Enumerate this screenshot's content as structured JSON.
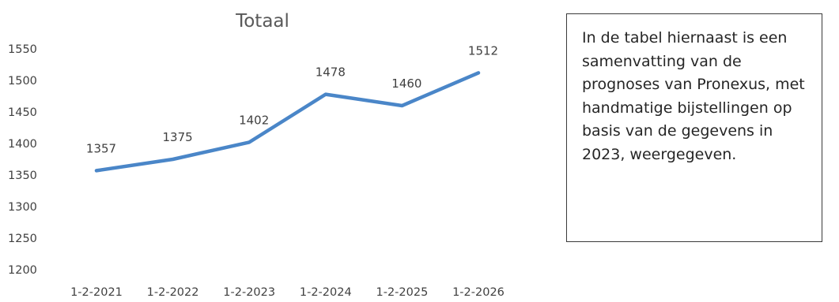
{
  "chart_data": {
    "type": "line",
    "title": "Totaal",
    "categories": [
      "1-2-2021",
      "1-2-2022",
      "1-2-2023",
      "1-2-2024",
      "1-2-2025",
      "1-2-2026"
    ],
    "values": [
      1357,
      1375,
      1402,
      1478,
      1460,
      1512
    ],
    "data_labels": [
      "1357",
      "1375",
      "1402",
      "1478",
      "1460",
      "1512"
    ],
    "y_ticks": [
      "1200",
      "1250",
      "1300",
      "1350",
      "1400",
      "1450",
      "1500",
      "1550"
    ],
    "ylim": [
      1200,
      1550
    ],
    "xlabel": "",
    "ylabel": "",
    "grid": false,
    "legend": false,
    "line_color": "#4a86c8"
  },
  "note": {
    "text": "In de tabel hiernaast is een samenvatting van de prognoses van Pronexus, met handmatige bijstellingen op basis van de gegevens in 2023, weergegeven."
  }
}
